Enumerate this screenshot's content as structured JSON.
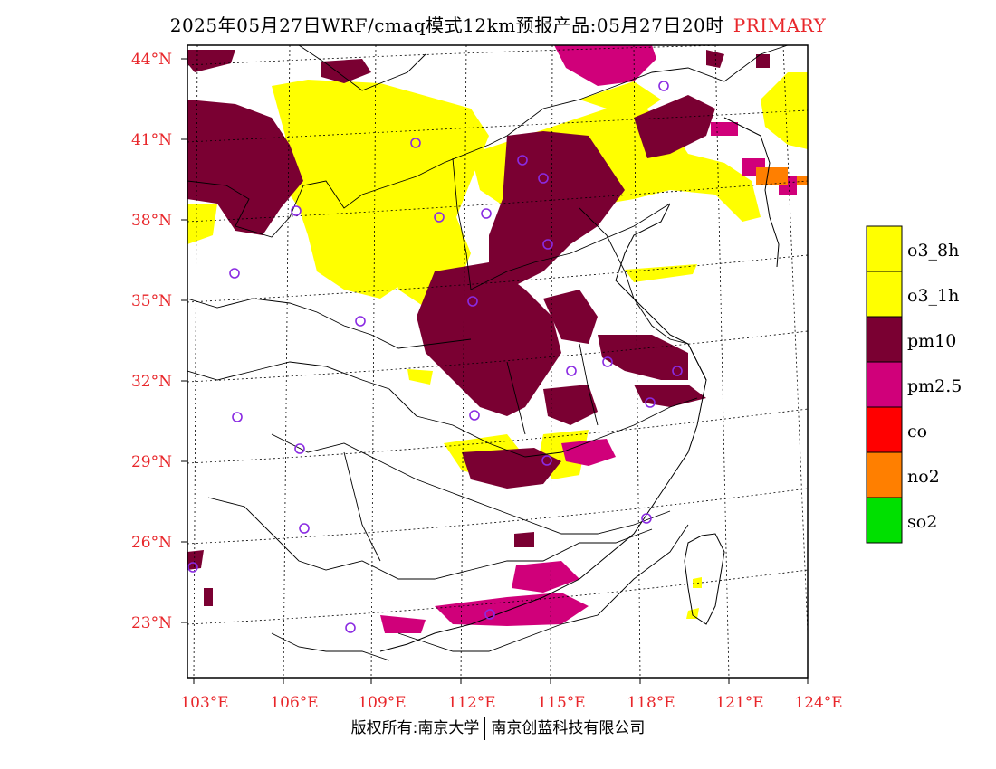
{
  "title": {
    "main": "2025年05月27日WRF/cmaq模式12km预报产品:05月27日20时",
    "tag": "PRIMARY"
  },
  "lat_labels": [
    "44°N",
    "41°N",
    "38°N",
    "35°N",
    "32°N",
    "29°N",
    "26°N",
    "23°N"
  ],
  "lon_labels": [
    "103°E",
    "106°E",
    "109°E",
    "112°E",
    "115°E",
    "118°E",
    "121°E",
    "124°E"
  ],
  "legend": [
    {
      "label": "o3_8h",
      "color": "#ffff00"
    },
    {
      "label": "o3_1h",
      "color": "#ffff00"
    },
    {
      "label": "pm10",
      "color": "#7a0032"
    },
    {
      "label": "pm2.5",
      "color": "#d0007a"
    },
    {
      "label": "co",
      "color": "#ff0000"
    },
    {
      "label": "no2",
      "color": "#ff7f00"
    },
    {
      "label": "so2",
      "color": "#00e000"
    }
  ],
  "copyright": {
    "left": "版权所有:南京大学",
    "right": "南京创蓝科技有限公司"
  },
  "colors": {
    "pm10": "#7a0032",
    "pm25": "#d0007a",
    "o3": "#ffff00",
    "no2": "#ff7f00",
    "station": "#8a2be2",
    "label": "#e8262a"
  }
}
